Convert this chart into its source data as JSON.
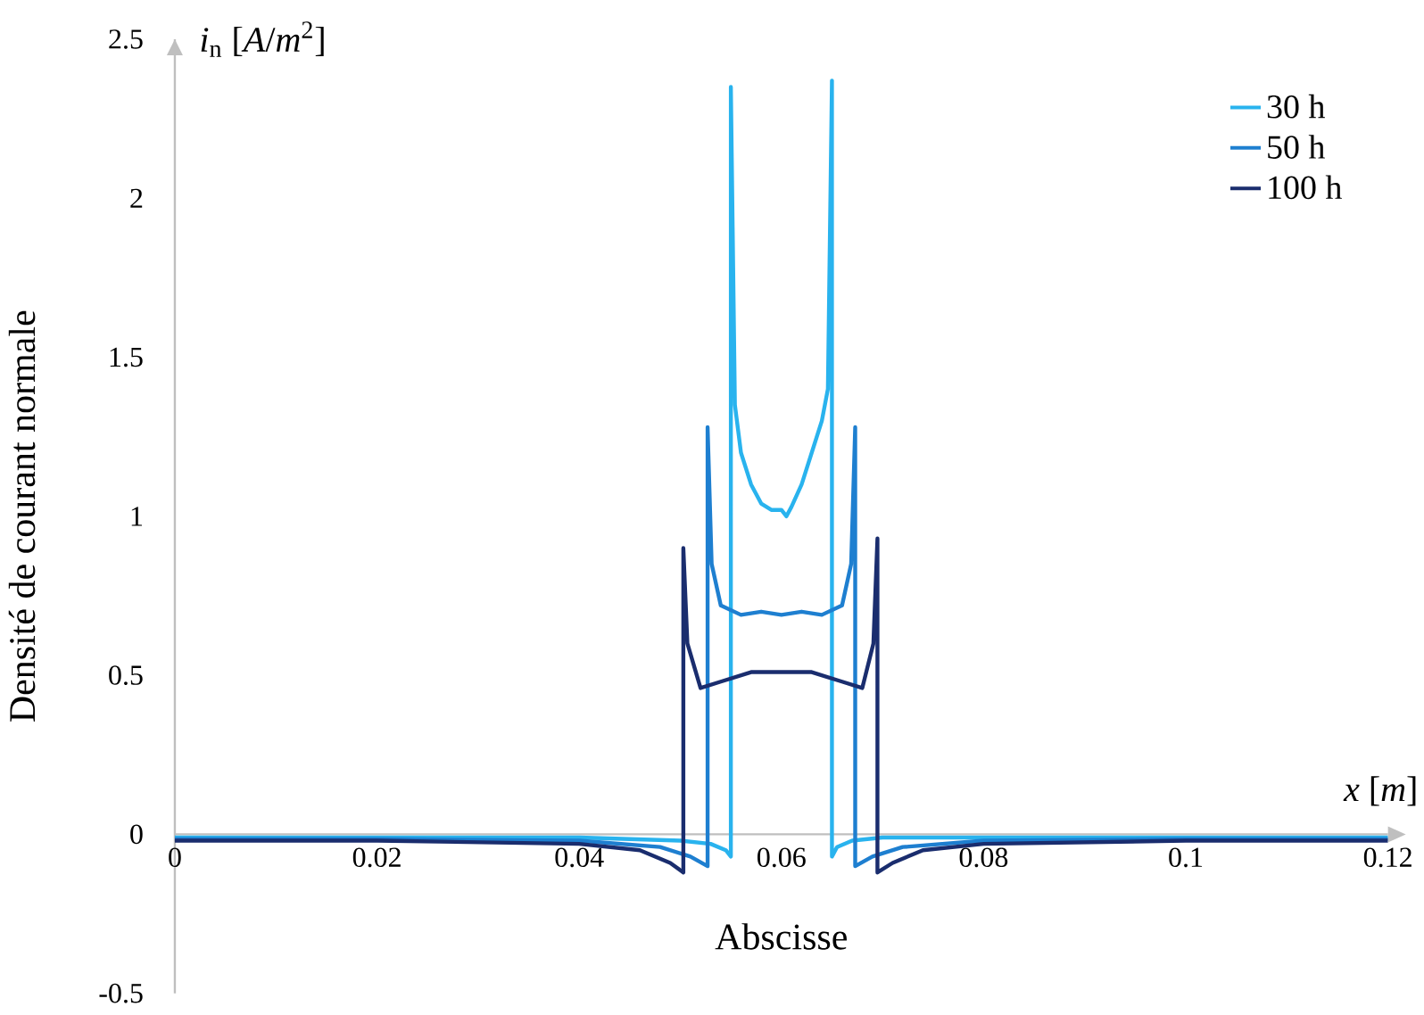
{
  "chart_data": {
    "type": "line",
    "xlabel": "Abscisse",
    "ylabel": "Densité de courant normale",
    "annotations": [
      "*i*$_{n}$ [*A*/*m*$^{2}$]",
      "*x* [*m*]"
    ],
    "xlim": [
      0,
      0.12
    ],
    "ylim": [
      -0.5,
      2.5
    ],
    "xticks": [
      0,
      0.02,
      0.04,
      0.06,
      0.08,
      0.1,
      0.12
    ],
    "yticks": [
      -0.5,
      0,
      0.5,
      1,
      1.5,
      2,
      2.5
    ],
    "legend": "top right",
    "series": [
      {
        "name": "30 h",
        "color": "#29b3ee",
        "x": [
          0,
          0.02,
          0.04,
          0.05,
          0.053,
          0.0545,
          0.055,
          0.055,
          0.0554,
          0.056,
          0.057,
          0.058,
          0.059,
          0.06,
          0.0605,
          0.061,
          0.062,
          0.063,
          0.064,
          0.0646,
          0.065,
          0.065,
          0.0655,
          0.067,
          0.07,
          0.08,
          0.1,
          0.12
        ],
        "values": [
          -0.01,
          -0.01,
          -0.01,
          -0.02,
          -0.03,
          -0.05,
          -0.07,
          2.35,
          1.35,
          1.2,
          1.1,
          1.04,
          1.02,
          1.02,
          1.0,
          1.03,
          1.1,
          1.2,
          1.3,
          1.4,
          2.37,
          -0.07,
          -0.04,
          -0.02,
          -0.01,
          -0.01,
          -0.01,
          -0.01
        ]
      },
      {
        "name": "50 h",
        "color": "#1e7fd0",
        "x": [
          0,
          0.02,
          0.04,
          0.048,
          0.051,
          0.0527,
          0.0527,
          0.0531,
          0.054,
          0.056,
          0.058,
          0.06,
          0.062,
          0.064,
          0.066,
          0.0669,
          0.0673,
          0.0673,
          0.069,
          0.072,
          0.08,
          0.1,
          0.12
        ],
        "values": [
          -0.015,
          -0.015,
          -0.02,
          -0.04,
          -0.07,
          -0.1,
          1.28,
          0.85,
          0.72,
          0.69,
          0.7,
          0.69,
          0.7,
          0.69,
          0.72,
          0.85,
          1.28,
          -0.1,
          -0.07,
          -0.04,
          -0.02,
          -0.015,
          -0.015
        ]
      },
      {
        "name": "100 h",
        "color": "#1a2d6e",
        "x": [
          0,
          0.02,
          0.04,
          0.046,
          0.049,
          0.0503,
          0.0503,
          0.0507,
          0.052,
          0.054,
          0.057,
          0.06,
          0.063,
          0.066,
          0.068,
          0.0691,
          0.0695,
          0.0695,
          0.071,
          0.074,
          0.08,
          0.1,
          0.12
        ],
        "values": [
          -0.02,
          -0.02,
          -0.03,
          -0.05,
          -0.09,
          -0.12,
          0.9,
          0.6,
          0.46,
          0.48,
          0.51,
          0.51,
          0.51,
          0.48,
          0.46,
          0.6,
          0.93,
          -0.12,
          -0.09,
          -0.05,
          -0.03,
          -0.02,
          -0.02
        ]
      }
    ]
  }
}
